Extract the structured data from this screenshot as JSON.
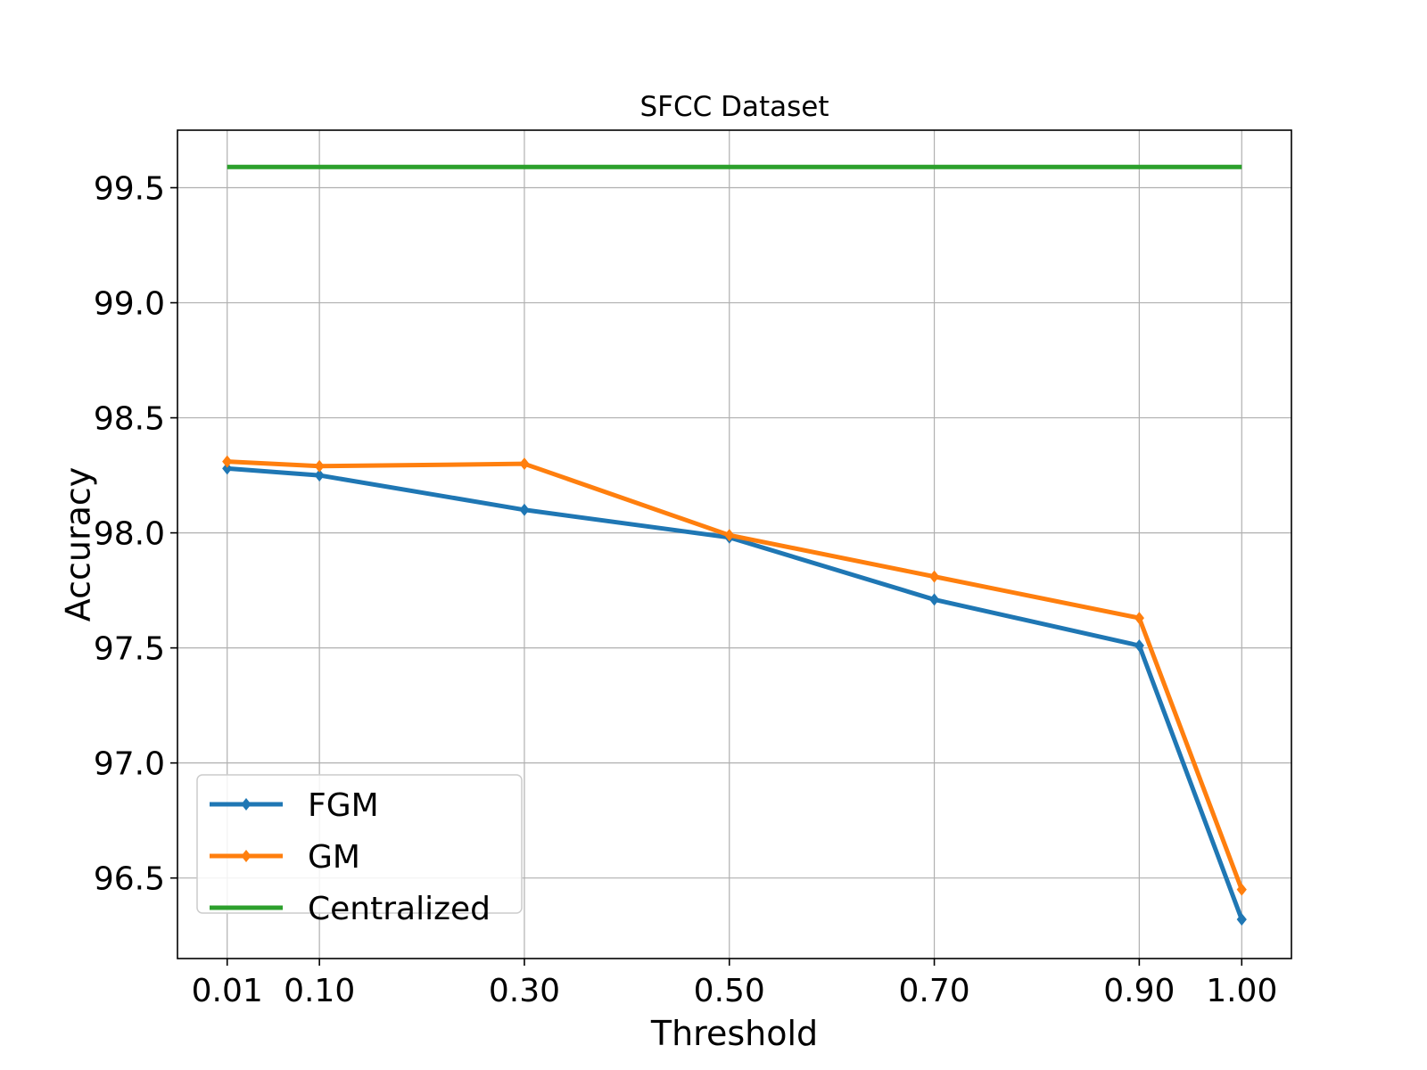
{
  "chart_data": {
    "type": "line",
    "title": "SFCC Dataset",
    "xlabel": "Threshold",
    "ylabel": "Accuracy",
    "x": [
      0.01,
      0.1,
      0.3,
      0.5,
      0.7,
      0.9,
      1.0
    ],
    "x_tick_labels": [
      "0.01",
      "0.10",
      "0.30",
      "0.50",
      "0.70",
      "0.90",
      "1.00"
    ],
    "y_ticks": [
      96.5,
      97.0,
      97.5,
      98.0,
      98.5,
      99.0,
      99.5
    ],
    "y_tick_labels": [
      "96.5",
      "97.0",
      "97.5",
      "98.0",
      "98.5",
      "99.0",
      "99.5"
    ],
    "xlim": [
      -0.0385,
      1.0485
    ],
    "ylim": [
      96.15,
      99.75
    ],
    "grid": true,
    "legend_position": "lower-left",
    "series": [
      {
        "name": "FGM",
        "color": "#1f77b4",
        "marker": "diamond",
        "values": [
          98.28,
          98.25,
          98.1,
          97.98,
          97.71,
          97.51,
          96.32
        ]
      },
      {
        "name": "GM",
        "color": "#ff7f0e",
        "marker": "diamond",
        "values": [
          98.31,
          98.29,
          98.3,
          97.99,
          97.81,
          97.63,
          96.45
        ]
      },
      {
        "name": "Centralized",
        "color": "#2ca02c",
        "marker": "none",
        "values": [
          99.59,
          99.59,
          99.59,
          99.59,
          99.59,
          99.59,
          99.59
        ]
      }
    ]
  }
}
